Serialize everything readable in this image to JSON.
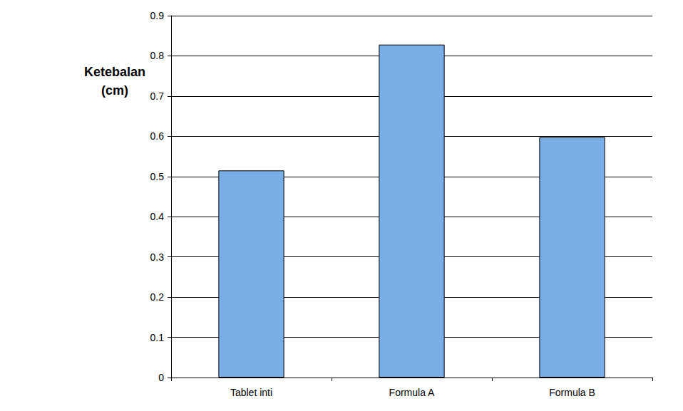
{
  "chart_data": {
    "type": "bar",
    "y_label": "Ketebalan (cm)",
    "categories": [
      "Tablet inti",
      "Formula A",
      "Formula B"
    ],
    "values": [
      0.515,
      0.828,
      0.598
    ],
    "color": "#7aaee6",
    "ylim": [
      0,
      0.9
    ],
    "yticks": [
      0,
      0.1,
      0.2,
      0.3,
      0.4,
      0.5,
      0.6,
      0.7,
      0.8,
      0.9
    ],
    "grid": true
  }
}
